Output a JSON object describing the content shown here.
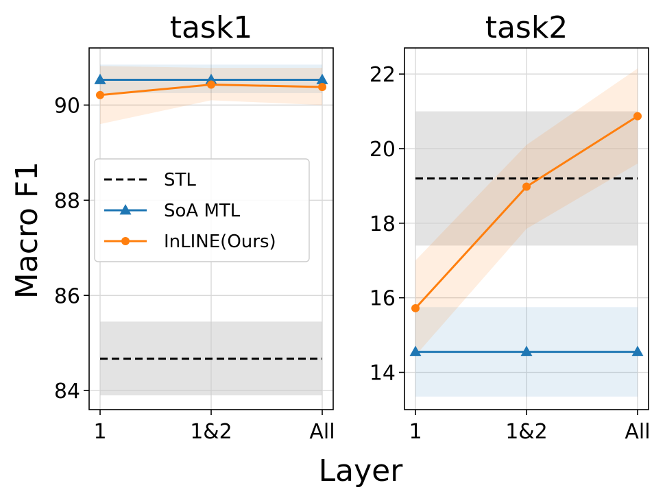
{
  "figure": {
    "ylabel": "Macro F1",
    "xlabel": "Layer"
  },
  "chart_data": [
    {
      "type": "line",
      "title": "task1",
      "categories": [
        "1",
        "1&2",
        "All"
      ],
      "ylim": [
        83.6,
        91.2
      ],
      "yticks": [
        84,
        86,
        88,
        90
      ],
      "grid": true,
      "legend": {
        "placement": "center-left",
        "entries": [
          "STL",
          "SoA MTL",
          "InLINE(Ours)"
        ]
      },
      "series": [
        {
          "name": "STL",
          "style": "dashed",
          "color": "#000000",
          "values": [
            84.67,
            84.67,
            84.67
          ],
          "band": [
            83.9,
            85.45
          ],
          "band_color": "#cccccc"
        },
        {
          "name": "SoA MTL",
          "marker": "triangle",
          "color": "#1f77b4",
          "values": [
            90.53,
            90.53,
            90.53
          ],
          "band": [
            90.25,
            90.85
          ],
          "band_color": "#1f77b4"
        },
        {
          "name": "InLINE(Ours)",
          "marker": "circle",
          "color": "#ff7f0e",
          "values": [
            90.21,
            90.43,
            90.38
          ],
          "band_low": [
            89.6,
            90.1,
            90.0
          ],
          "band_high": [
            90.82,
            90.78,
            90.78
          ],
          "band_color": "#ff7f0e"
        }
      ]
    },
    {
      "type": "line",
      "title": "task2",
      "categories": [
        "1",
        "1&2",
        "All"
      ],
      "ylim": [
        13.0,
        22.7
      ],
      "yticks": [
        14,
        16,
        18,
        20,
        22
      ],
      "grid": true,
      "series": [
        {
          "name": "STL",
          "style": "dashed",
          "color": "#000000",
          "values": [
            19.2,
            19.2,
            19.2
          ],
          "band": [
            17.4,
            21.0
          ],
          "band_color": "#cccccc"
        },
        {
          "name": "SoA MTL",
          "marker": "triangle",
          "color": "#1f77b4",
          "values": [
            14.55,
            14.55,
            14.55
          ],
          "band": [
            13.35,
            15.75
          ],
          "band_color": "#1f77b4"
        },
        {
          "name": "InLINE(Ours)",
          "marker": "circle",
          "color": "#ff7f0e",
          "values": [
            15.72,
            18.98,
            20.87
          ],
          "band_low": [
            14.45,
            17.85,
            19.6
          ],
          "band_high": [
            17.0,
            20.1,
            22.15
          ],
          "band_color": "#ff7f0e"
        }
      ]
    }
  ]
}
